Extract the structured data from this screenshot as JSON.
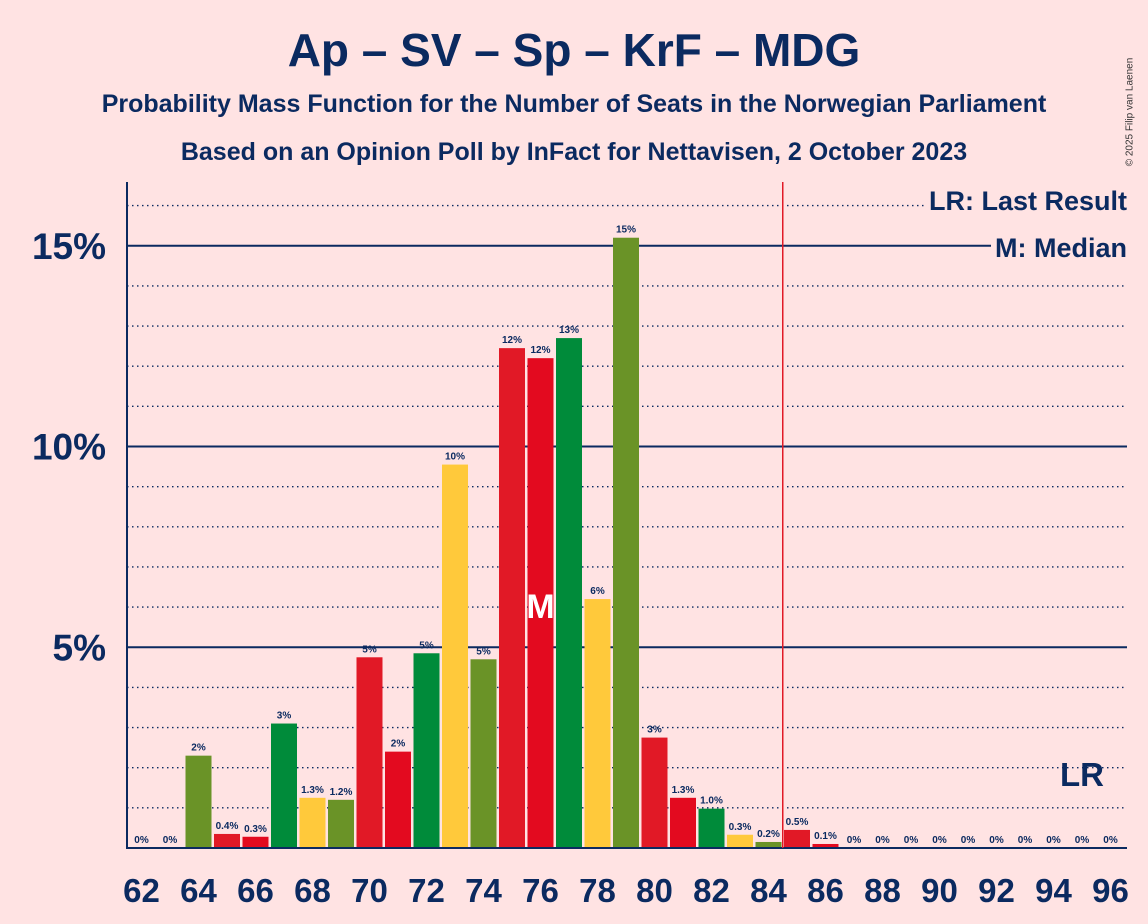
{
  "title": "Ap – SV – Sp – KrF – MDG",
  "subtitle_1": "Probability Mass Function for the Number of Seats in the Norwegian Parliament",
  "subtitle_2": "Based on an Opinion Poll by InFact for Nettavisen, 2 October 2023",
  "copyright": "© 2025 Filip van Laenen",
  "legend": {
    "last_result": "LR: Last Result",
    "median": "M: Median"
  },
  "markers": {
    "median_label": "M",
    "median_seat": 76,
    "last_result_label": "LR",
    "last_result_seat": 95,
    "majority_line_seat": 84.5
  },
  "colors": {
    "background": "#ffe3e3",
    "text": "#0b2a60",
    "party_colors": [
      "#e11926",
      "#6a9327",
      "#e30a1f",
      "#008b3a",
      "#ffc93b"
    ],
    "majority_line": "#e11926"
  },
  "chart_data": {
    "type": "bar",
    "title": "Ap – SV – Sp – KrF – MDG",
    "xlabel": "",
    "ylabel": "",
    "ylim": [
      0,
      16.5
    ],
    "yticks": [
      {
        "value": 5,
        "label": "5%"
      },
      {
        "value": 10,
        "label": "10%"
      },
      {
        "value": 15,
        "label": "15%"
      }
    ],
    "minor_grid_step": 1,
    "x_tick_labels": [
      "62",
      "64",
      "66",
      "68",
      "70",
      "72",
      "74",
      "76",
      "78",
      "80",
      "82",
      "84",
      "86",
      "88",
      "90",
      "92",
      "94",
      "96"
    ],
    "categories": [
      62,
      63,
      64,
      65,
      66,
      67,
      68,
      69,
      70,
      71,
      72,
      73,
      74,
      75,
      76,
      77,
      78,
      79,
      80,
      81,
      82,
      83,
      84,
      85,
      86,
      87,
      88,
      89,
      90,
      91,
      92,
      93,
      94,
      95,
      96
    ],
    "values": [
      0,
      0,
      2.3,
      0.35,
      0.28,
      3.1,
      1.25,
      1.2,
      4.75,
      2.4,
      4.85,
      9.55,
      4.7,
      12.45,
      12.2,
      12.7,
      6.2,
      15.2,
      2.75,
      1.25,
      0.98,
      0.33,
      0.15,
      0.45,
      0.1,
      0,
      0,
      0,
      0,
      0,
      0,
      0,
      0,
      0,
      0
    ],
    "labels": [
      "0%",
      "0%",
      "2%",
      "0.4%",
      "0.3%",
      "3%",
      "1.3%",
      "1.2%",
      "5%",
      "2%",
      "5%",
      "10%",
      "5%",
      "12%",
      "12%",
      "13%",
      "6%",
      "15%",
      "3%",
      "1.3%",
      "1.0%",
      "0.3%",
      "0.2%",
      "0.5%",
      "0.1%",
      "0%",
      "0%",
      "0%",
      "0%",
      "0%",
      "0%",
      "0%",
      "0%",
      "0%",
      "0%"
    ],
    "bar_colors": [
      "#e11926",
      "#6a9327",
      "#6a9327",
      "#e11926",
      "#e30a1f",
      "#008b3a",
      "#ffc93b",
      "#6a9327",
      "#e11926",
      "#e30a1f",
      "#008b3a",
      "#ffc93b",
      "#6a9327",
      "#e11926",
      "#e30a1f",
      "#008b3a",
      "#ffc93b",
      "#6a9327",
      "#e11926",
      "#e30a1f",
      "#008b3a",
      "#ffc93b",
      "#6a9327",
      "#e11926",
      "#e30a1f",
      "#008b3a",
      "#ffc93b",
      "#6a9327",
      "#e11926",
      "#e30a1f",
      "#008b3a",
      "#ffc93b",
      "#6a9327",
      "#e11926",
      "#e30a1f"
    ]
  }
}
